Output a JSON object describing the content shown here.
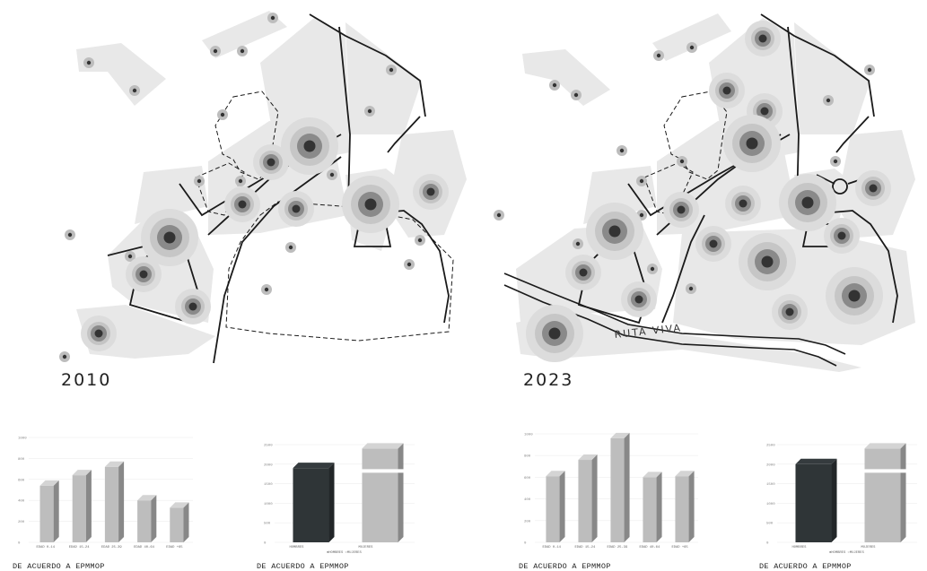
{
  "maps": [
    {
      "year": "2010"
    },
    {
      "year": "2023",
      "road_label": "RUTA VIVA"
    }
  ],
  "captions": [
    "DE ACUERDO A EPMMOP",
    "DE ACUERDO A EPMMOP",
    "DE ACUERDO A EPMMOP",
    "DE ACUERDO A EPMMOP"
  ],
  "colors": {
    "block_fill": "#e8e8e8",
    "street_line": "#1a1a1a",
    "density_dot": "#333333",
    "density_halo": "#8a8a8a",
    "bar_light": "#bdbdbd",
    "bar_dark": "#2f3537"
  },
  "chart_data": [
    {
      "type": "bar",
      "categories": [
        "EDAD 0-14",
        "EDAD 15-24",
        "EDAD 25-39",
        "EDAD 40-64",
        "EDAD +65"
      ],
      "values": [
        540,
        640,
        720,
        400,
        330
      ],
      "ylim": [
        0,
        1000
      ],
      "yticks": [
        "1000",
        "800",
        "600",
        "400",
        "200",
        "0"
      ]
    },
    {
      "type": "bar",
      "categories": [
        "HOMBRES",
        "MUJERES"
      ],
      "values": [
        1900,
        2400
      ],
      "legend": [
        "HOMBRES",
        "MUJERES"
      ],
      "ylim": [
        0,
        2500
      ],
      "yticks": [
        "2500",
        "2000",
        "1500",
        "1000",
        "500",
        "0"
      ]
    },
    {
      "type": "bar",
      "categories": [
        "EDAD 0-14",
        "EDAD 15-24",
        "EDAD 25-39",
        "EDAD 40-64",
        "EDAD +65"
      ],
      "values": [
        610,
        760,
        960,
        600,
        610
      ],
      "ylim": [
        0,
        1000
      ],
      "yticks": [
        "1000",
        "800",
        "600",
        "400",
        "200",
        "0"
      ]
    },
    {
      "type": "bar",
      "categories": [
        "HOMBRES",
        "MUJERES"
      ],
      "values": [
        2000,
        2400
      ],
      "legend": [
        "HOMBRES",
        "MUJERES"
      ],
      "ylim": [
        0,
        2500
      ],
      "yticks": [
        "2500",
        "2000",
        "1500",
        "1000",
        "500",
        "0"
      ]
    }
  ]
}
